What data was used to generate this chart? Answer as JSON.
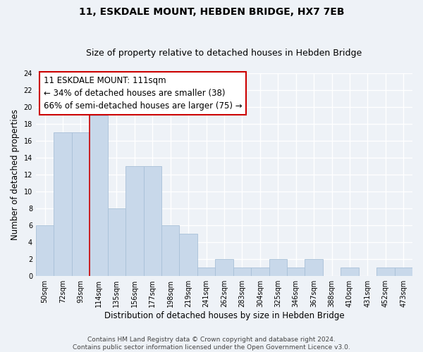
{
  "title": "11, ESKDALE MOUNT, HEBDEN BRIDGE, HX7 7EB",
  "subtitle": "Size of property relative to detached houses in Hebden Bridge",
  "xlabel": "Distribution of detached houses by size in Hebden Bridge",
  "ylabel": "Number of detached properties",
  "categories": [
    "50sqm",
    "72sqm",
    "93sqm",
    "114sqm",
    "135sqm",
    "156sqm",
    "177sqm",
    "198sqm",
    "219sqm",
    "241sqm",
    "262sqm",
    "283sqm",
    "304sqm",
    "325sqm",
    "346sqm",
    "367sqm",
    "388sqm",
    "410sqm",
    "431sqm",
    "452sqm",
    "473sqm"
  ],
  "values": [
    6,
    17,
    17,
    19,
    8,
    13,
    13,
    6,
    5,
    1,
    2,
    1,
    1,
    2,
    1,
    2,
    0,
    1,
    0,
    1,
    1
  ],
  "bar_color": "#c8d8ea",
  "bar_edge_color": "#a8c0d8",
  "vline_x_index": 3,
  "vline_color": "#cc0000",
  "annotation_line1": "11 ESKDALE MOUNT: 111sqm",
  "annotation_line2": "← 34% of detached houses are smaller (38)",
  "annotation_line3": "66% of semi-detached houses are larger (75) →",
  "annotation_box_color": "white",
  "annotation_box_edge_color": "#cc0000",
  "ylim": [
    0,
    24
  ],
  "yticks": [
    0,
    2,
    4,
    6,
    8,
    10,
    12,
    14,
    16,
    18,
    20,
    22,
    24
  ],
  "footer_text": "Contains HM Land Registry data © Crown copyright and database right 2024.\nContains public sector information licensed under the Open Government Licence v3.0.",
  "bg_color": "#eef2f7",
  "grid_color": "white",
  "title_fontsize": 10,
  "subtitle_fontsize": 9,
  "annotation_fontsize": 8.5,
  "tick_fontsize": 7,
  "ylabel_fontsize": 8.5,
  "xlabel_fontsize": 8.5,
  "footer_fontsize": 6.5
}
